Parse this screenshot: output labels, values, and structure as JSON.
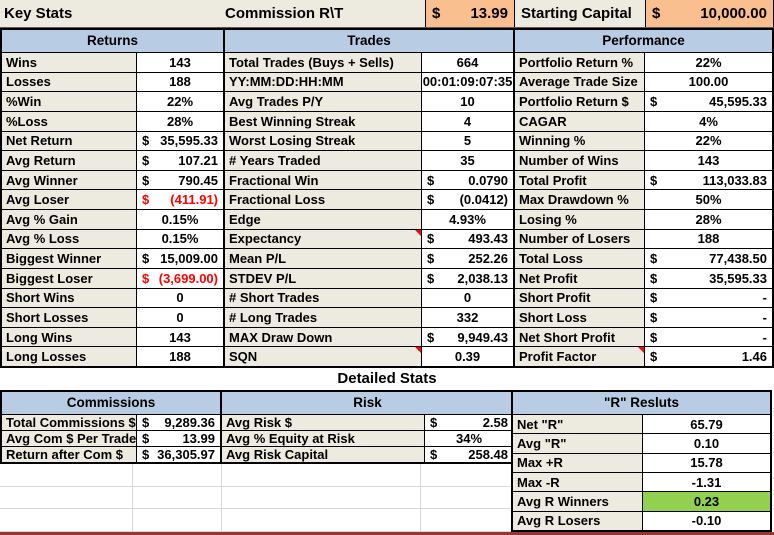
{
  "colors": {
    "header_blue": "#B8CCE4",
    "label_beige": "#EDEBE0",
    "orange": "#FABF8F",
    "green": "#92D050",
    "red": "#FF0000",
    "gridline": "#D6D6D6",
    "maroon": "#943634"
  },
  "top_bar": {
    "key_stats": "Key Stats",
    "commission_label": "Commission R\\T",
    "commission_currency": "$",
    "commission_value": "13.99",
    "starting_capital_label": "Starting Capital",
    "starting_capital_currency": "$",
    "starting_capital_value": "10,000.00"
  },
  "returns": {
    "title": "Returns",
    "rows": [
      {
        "label": "Wins",
        "value": "143"
      },
      {
        "label": "Losses",
        "value": "188"
      },
      {
        "label": "%Win",
        "value": "22%"
      },
      {
        "label": "%Loss",
        "value": "28%"
      },
      {
        "label": "Net Return",
        "currency": "$",
        "value": "35,595.33"
      },
      {
        "label": "Avg Return",
        "currency": "$",
        "value": "107.21"
      },
      {
        "label": "Avg Winner",
        "currency": "$",
        "value": "790.45"
      },
      {
        "label": "Avg Loser",
        "currency": "$",
        "value": "(411.91)",
        "red": true
      },
      {
        "label": "Avg % Gain",
        "value": "0.15%"
      },
      {
        "label": "Avg % Loss",
        "value": "0.15%"
      },
      {
        "label": "Biggest Winner",
        "currency": "$",
        "value": "15,009.00"
      },
      {
        "label": "Biggest Loser",
        "currency": "$",
        "value": "(3,699.00)",
        "red": true
      },
      {
        "label": "Short Wins",
        "value": "0"
      },
      {
        "label": "Short Losses",
        "value": "0"
      },
      {
        "label": "Long Wins",
        "value": "143"
      },
      {
        "label": "Long Losses",
        "value": "188"
      }
    ]
  },
  "trades": {
    "title": "Trades",
    "rows": [
      {
        "label": "Total Trades (Buys + Sells)",
        "value": "664"
      },
      {
        "label": "YY:MM:DD:HH:MM",
        "value": "00:01:09:07:35"
      },
      {
        "label": "Avg Trades P/Y",
        "value": "10"
      },
      {
        "label": "Best Winning Streak",
        "value": "4"
      },
      {
        "label": "Worst Losing Streak",
        "value": "5"
      },
      {
        "label": "# Years Traded",
        "value": "35"
      },
      {
        "label": "Fractional Win",
        "currency": "$",
        "value": "0.0790"
      },
      {
        "label": "Fractional Loss",
        "currency": "$",
        "value": "(0.0412)"
      },
      {
        "label": "Edge",
        "value": "4.93%"
      },
      {
        "label": "Expectancy",
        "currency": "$",
        "value": "493.43",
        "note": true
      },
      {
        "label": "Mean P/L",
        "currency": "$",
        "value": "252.26"
      },
      {
        "label": "STDEV P/L",
        "currency": "$",
        "value": "2,038.13"
      },
      {
        "label": "# Short Trades",
        "value": "0"
      },
      {
        "label": "# Long Trades",
        "value": "332"
      },
      {
        "label": "MAX Draw Down",
        "currency": "$",
        "value": "9,949.43"
      },
      {
        "label": "SQN",
        "value": "0.39",
        "note": true
      }
    ]
  },
  "performance": {
    "title": "Performance",
    "rows": [
      {
        "label": "Portfolio Return %",
        "value": "22%"
      },
      {
        "label": "Average Trade Size",
        "value": "100.00"
      },
      {
        "label": "Portfolio Return $",
        "currency": "$",
        "value": "45,595.33"
      },
      {
        "label": "CAGAR",
        "value": "4%"
      },
      {
        "label": "Winning %",
        "value": "22%"
      },
      {
        "label": "Number of Wins",
        "value": "143"
      },
      {
        "label": "Total Profit",
        "currency": "$",
        "value": "113,033.83"
      },
      {
        "label": "Max Drawdown %",
        "value": "50%"
      },
      {
        "label": "Losing %",
        "value": "28%"
      },
      {
        "label": "Number of Losers",
        "value": "188"
      },
      {
        "label": "Total Loss",
        "currency": "$",
        "value": "77,438.50"
      },
      {
        "label": "Net Profit",
        "currency": "$",
        "value": "35,595.33"
      },
      {
        "label": "Short Profit",
        "currency": "$",
        "value": "-"
      },
      {
        "label": "Short Loss",
        "currency": "$",
        "value": "-"
      },
      {
        "label": "Net Short Profit",
        "currency": "$",
        "value": "-"
      },
      {
        "label": "Profit Factor",
        "currency": "$",
        "value": "1.46",
        "note": true
      }
    ]
  },
  "detailed_stats": {
    "title": "Detailed Stats",
    "commissions": {
      "title": "Commissions",
      "rows": [
        {
          "label": "Total Commissions $",
          "currency": "$",
          "value": "9,289.36"
        },
        {
          "label": "Avg Com $ Per Trade",
          "currency": "$",
          "value": "13.99"
        },
        {
          "label": "Return after Com $",
          "currency": "$",
          "value": "36,305.97"
        }
      ]
    },
    "risk": {
      "title": "Risk",
      "rows": [
        {
          "label": "Avg Risk $",
          "currency": "$",
          "value": "2.58"
        },
        {
          "label": "Avg % Equity at Risk",
          "value": "34%"
        },
        {
          "label": "Avg Risk Capital",
          "currency": "$",
          "value": "258.48"
        }
      ]
    },
    "r_results": {
      "title": "\"R\" Resluts",
      "rows": [
        {
          "label": "Net \"R\"",
          "value": "65.79"
        },
        {
          "label": "Avg \"R\"",
          "value": "0.10"
        },
        {
          "label": "Max +R",
          "value": "15.78"
        },
        {
          "label": "Max -R",
          "value": "-1.31"
        },
        {
          "label": "Avg R Winners",
          "value": "0.23",
          "highlight": "green"
        },
        {
          "label": "Avg R Losers",
          "value": "-0.10"
        }
      ]
    }
  }
}
